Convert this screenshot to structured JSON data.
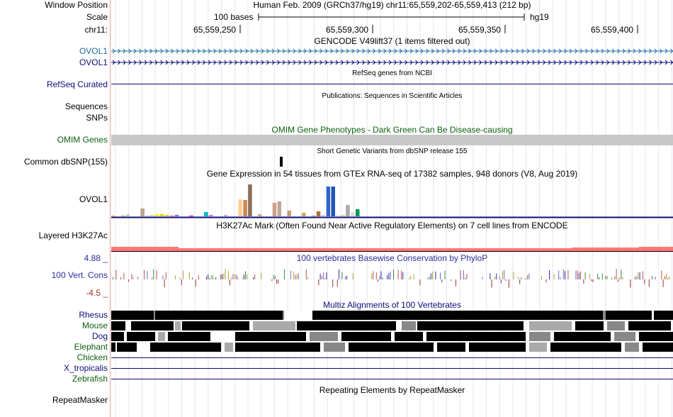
{
  "header": {
    "window_position_label": "Window Position",
    "window_position_text": "Human Feb. 2009 (GRCh37/hg19)   chr11:65,559,202-65,559,413 (212 bp)",
    "scale_label": "Scale",
    "scale_bar_text": "100 bases",
    "assembly": "hg19",
    "chrom_label": "chr11:",
    "ruler_ticks": [
      "65,559,250",
      "65,559,300",
      "65,559,350",
      "65,559,400"
    ]
  },
  "tracks": {
    "gencode": {
      "title": "GENCODE V49lift37 (1 items filtered out)",
      "items": [
        "OVOL1",
        "OVOL1"
      ],
      "colors": [
        "#1d6c9d",
        "#0c0c78"
      ]
    },
    "refseq": {
      "title": "RefSeq genes from NCBI",
      "label": "RefSeq Curated",
      "color": "#0c0c78"
    },
    "publications": {
      "title": "Publications: Sequences in Scientific Articles",
      "label_line1": "Sequences",
      "label_line2": "SNPs"
    },
    "omim": {
      "title": "OMIM Gene Phenotypes - Dark Green Can Be Disease-causing",
      "label": "OMIM Genes",
      "color": "#0e5e0e"
    },
    "dbsnp": {
      "title": "Short Genetic Variants from dbSNP release 155",
      "label": "Common dbSNP(155)"
    },
    "gtex": {
      "title": "Gene Expression in 54 tissues from GTEx RNA-seq of 17382 samples, 948 donors (V8, Aug 2019)",
      "label": "OVOL1",
      "values": [
        1,
        0,
        1,
        3,
        0,
        0,
        11,
        1,
        2,
        3,
        3,
        2,
        1,
        2,
        0,
        0,
        1,
        0,
        0,
        6,
        2,
        0,
        0,
        2,
        0,
        0,
        24,
        23,
        45,
        0,
        3,
        0,
        0,
        19,
        21,
        0,
        8,
        0,
        0,
        5,
        0,
        1,
        7,
        2,
        42,
        42,
        3,
        2,
        16,
        6,
        10,
        0,
        0,
        0
      ],
      "colors": [
        "#ffaa00",
        "#ff9966",
        "#cc9966",
        "#cccccc",
        "#ccffcc",
        "#aaaaaa",
        "#bba488",
        "#ccbb99",
        "#ccddaa",
        "#ffee00",
        "#eecc00",
        "#ccdd00",
        "#ff6666",
        "#9966ff",
        "#dd88aa",
        "#00cc66",
        "#aa00aa",
        "#aaff00",
        "#eeeeaa",
        "#00bbcc",
        "#ee66ee",
        "#ff77cc",
        "#cc55bb",
        "#dd99ff",
        "#bb66ff",
        "#ffbb88",
        "#ffcc99",
        "#cc8855",
        "#8b6e55",
        "#ddbbaa",
        "#ccaa88",
        "#eeddcc",
        "#bb9988",
        "#cca088",
        "#bbaa99",
        "#ddccbb",
        "#cc9977",
        "#aa8866",
        "#bbbbbb",
        "#ccaa66",
        "#ddeedd",
        "#cc9955",
        "#aa7733",
        "#ddcccc",
        "#3366cc",
        "#2255bb",
        "#eeeeee",
        "#ffcc88",
        "#aaaaaa",
        "#dddddd",
        "#009955",
        "#ffccdd",
        "#ffddee",
        "#ffeeee"
      ]
    },
    "h3k27ac": {
      "title": "H3K27Ac Mark (Often Found Near Active Regulatory Elements) on 7 cell lines from ENCODE",
      "label": "Layered H3K27Ac",
      "color": "#ff7777"
    },
    "conservation": {
      "title": "100 vertebrates Basewise Conservation by PhyloP",
      "label": "100 Vert. Cons",
      "max_label": "4.88 _",
      "min_label": "-4.5 _",
      "color": "#2d2d9e",
      "neg_color": "#a03030"
    },
    "multiz": {
      "title": "Multiz Alignments of 100 Vertebrates",
      "species": [
        "Rhesus",
        "Mouse",
        "Dog",
        "Elephant",
        "Chicken",
        "X_tropicalis",
        "Zebrafish"
      ],
      "species_colors": [
        "#0c0c78",
        "#0e5e0e",
        "#0c0c78",
        "#0e5e0e",
        "#0e5e0e",
        "#0c0c78",
        "#0e5e0e"
      ]
    },
    "repeatmasker": {
      "title": "Repeating Elements by RepeatMasker",
      "label": "RepeatMasker"
    }
  }
}
